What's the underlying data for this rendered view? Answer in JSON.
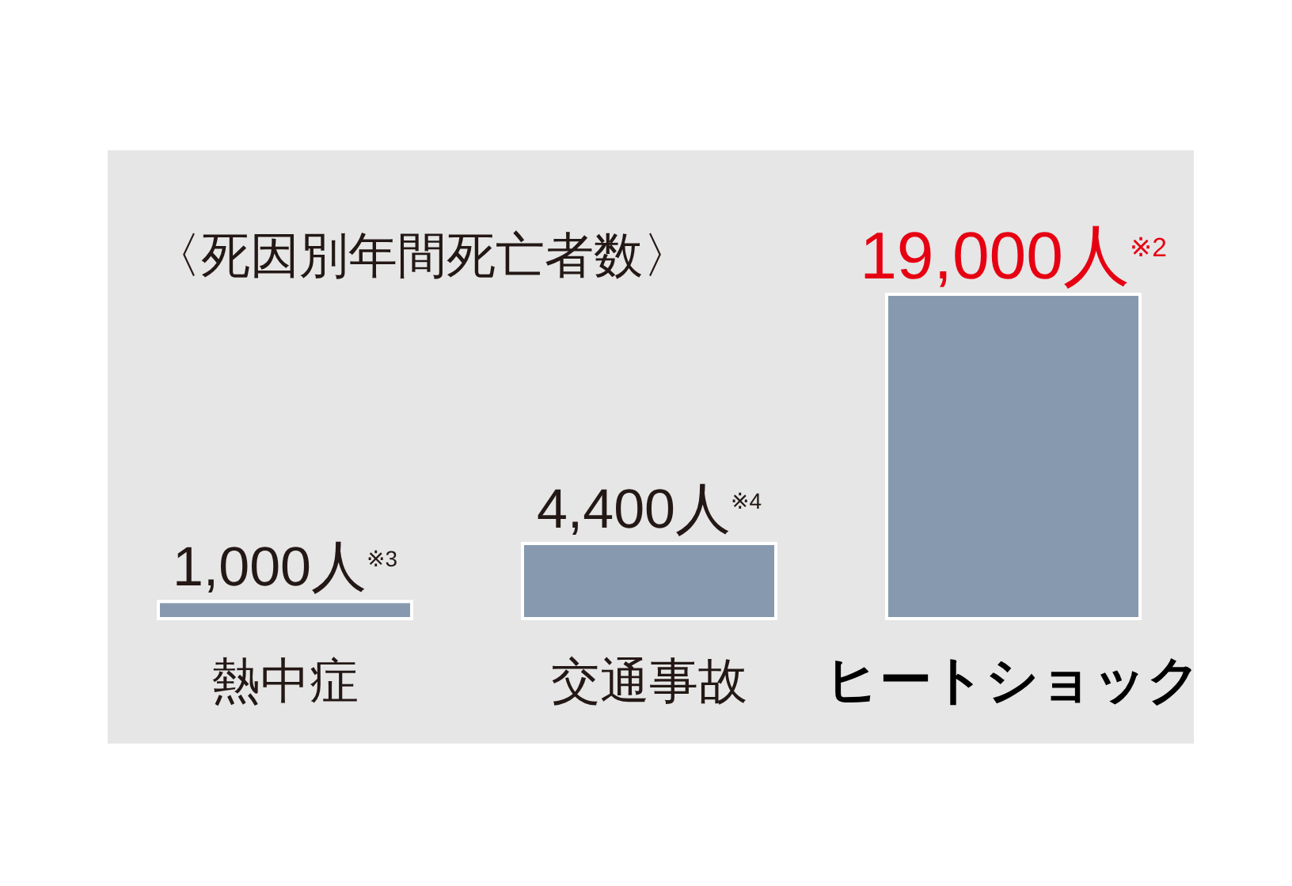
{
  "chart_data": {
    "type": "bar",
    "title": "〈死因別年間死亡者数〉",
    "categories": [
      "熱中症",
      "交通事故",
      "ヒートショック"
    ],
    "values": [
      1000,
      4400,
      19000
    ],
    "value_labels": [
      "1,000人$^{※3}$",
      "4,400人$^{※4}$",
      "19,000人$^{※2}$"
    ],
    "color": "#8799ae"
  }
}
